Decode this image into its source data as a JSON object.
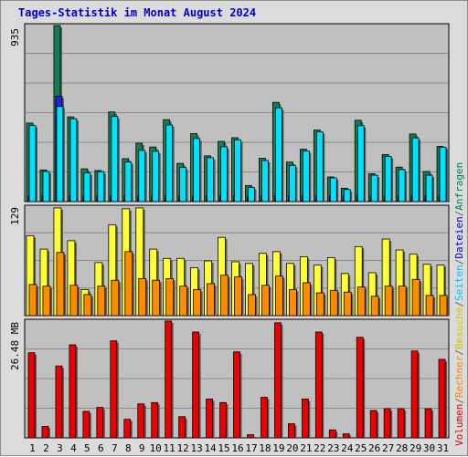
{
  "title": "Tages-Statistik im Monat August 2024",
  "axis_max_labels": [
    "935",
    "129",
    "26.48 MB"
  ],
  "legend": {
    "parts": [
      {
        "text": "Volumen",
        "color": "#dd0000"
      },
      {
        "text": "/",
        "color": "#606060"
      },
      {
        "text": "Rechner",
        "color": "#ff8000"
      },
      {
        "text": "/",
        "color": "#606060"
      },
      {
        "text": "Besuche",
        "color": "#c8c800"
      },
      {
        "text": "/",
        "color": "#606060"
      },
      {
        "text": "Seiten",
        "color": "#00c0ff"
      },
      {
        "text": "/",
        "color": "#606060"
      },
      {
        "text": "Dateien",
        "color": "#0000cc"
      },
      {
        "text": "/",
        "color": "#606060"
      },
      {
        "text": "Anfragen",
        "color": "#00805a"
      }
    ]
  },
  "colors": {
    "anfragen": "#118055",
    "dateien": "#2222dd",
    "seiten": "#00e0ff",
    "besuche": "#ffff33",
    "rechner": "#ff8c00",
    "volumen": "#ee0000",
    "plot_bg": "#c0c0c0",
    "weekend_day": "#008060",
    "weekday_day": "#000000"
  },
  "chart_data": {
    "type": "bar",
    "x": [
      1,
      2,
      3,
      4,
      5,
      6,
      7,
      8,
      9,
      10,
      11,
      12,
      13,
      14,
      15,
      16,
      17,
      18,
      19,
      20,
      21,
      22,
      23,
      24,
      25,
      26,
      27,
      28,
      29,
      30,
      31
    ],
    "weekend_days": [
      3,
      4,
      10,
      11,
      17,
      18,
      24,
      25,
      31
    ],
    "panels": [
      {
        "name": "requests",
        "ymax": 935,
        "series": [
          {
            "name": "Anfragen",
            "values": [
              417,
              168,
              935,
              450,
              174,
              165,
              476,
              228,
              310,
              290,
              435,
              203,
              361,
              243,
              320,
              339,
              85,
              230,
              527,
              210,
              278,
              380,
              131,
              71,
              432,
              148,
              250,
              183,
              359,
              160,
              293
            ]
          },
          {
            "name": "Dateien",
            "values": [
              30,
              30,
              560,
              30,
              30,
              30,
              30,
              30,
              30,
              30,
              30,
              30,
              30,
              30,
              30,
              30,
              30,
              30,
              30,
              30,
              30,
              30,
              30,
              30,
              30,
              30,
              30,
              30,
              30,
              30,
              30
            ]
          },
          {
            "name": "Seiten",
            "values": [
              404,
              160,
              505,
              440,
              152,
              159,
              452,
              210,
              272,
              267,
              407,
              181,
              335,
              233,
              291,
              328,
              75,
              218,
              498,
              192,
              269,
              370,
              126,
              64,
              403,
              140,
              240,
              170,
              338,
              140,
              289
            ]
          }
        ]
      },
      {
        "name": "visits",
        "ymax": 129,
        "series": [
          {
            "name": "Besuche",
            "values": [
              95,
              79,
              128,
              89,
              31,
              63,
              108,
              127,
              128,
              79,
              68,
              68,
              57,
              65,
              93,
              64,
              62,
              74,
              76,
              62,
              70,
              60,
              69,
              50,
              82,
              51,
              91,
              78,
              73,
              61,
              60
            ]
          },
          {
            "name": "Rechner",
            "values": [
              37,
              35,
              75,
              36,
              25,
              35,
              42,
              76,
              44,
              42,
              44,
              35,
              31,
              38,
              48,
              46,
              25,
              36,
              47,
              31,
              39,
              27,
              30,
              28,
              34,
              23,
              35,
              35,
              43,
              24,
              24
            ]
          }
        ]
      },
      {
        "name": "volume",
        "ymax_label": "26.48 MB",
        "ymax": 26.48,
        "series": [
          {
            "name": "Volumen",
            "values": [
              19.3,
              2.6,
              16.3,
              21.1,
              6.0,
              6.9,
              22.0,
              4.2,
              7.7,
              8.0,
              26.5,
              4.8,
              24.0,
              8.8,
              8.0,
              19.5,
              0.7,
              9.2,
              26.1,
              3.2,
              8.8,
              24.0,
              1.8,
              0.9,
              22.8,
              6.2,
              6.6,
              6.6,
              19.7,
              6.6,
              17.8
            ]
          }
        ]
      }
    ]
  }
}
